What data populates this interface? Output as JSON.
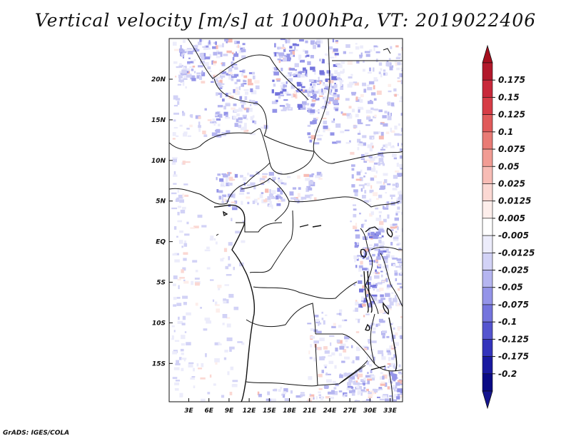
{
  "title": "Vertical velocity [m/s] at 1000hPa, VT: 2019022406",
  "footer": "GrADS: IGES/COLA",
  "map": {
    "region": "Central Africa",
    "lat_ticks": [
      "20N",
      "15N",
      "10N",
      "5N",
      "EQ",
      "5S",
      "10S",
      "15S"
    ],
    "lon_ticks": [
      "3E",
      "6E",
      "9E",
      "12E",
      "15E",
      "18E",
      "21E",
      "24E",
      "27E",
      "30E",
      "33E"
    ],
    "lat_range": [
      -19.5,
      24.5
    ],
    "lon_range": [
      0,
      35
    ]
  },
  "colorbar": {
    "levels": [
      "0.175",
      "0.15",
      "0.125",
      "0.1",
      "0.075",
      "0.05",
      "0.025",
      "0.0125",
      "0.005",
      "-0.005",
      "-0.0125",
      "-0.025",
      "-0.05",
      "-0.075",
      "-0.1",
      "-0.125",
      "-0.175",
      "-0.2"
    ],
    "colors": [
      "#b2182b",
      "#c8283a",
      "#d63c46",
      "#e05a5a",
      "#e97b75",
      "#f19c94",
      "#f7bcb5",
      "#fbd8d3",
      "#fdeeeb",
      "#ffffff",
      "#ececfb",
      "#d2d2f6",
      "#b5b5f0",
      "#9494e8",
      "#7474dd",
      "#5454cf",
      "#3434bc",
      "#1a1aa0",
      "#0a0a85"
    ],
    "top_color": "#a50f1e",
    "bottom_color": "#15158f"
  }
}
